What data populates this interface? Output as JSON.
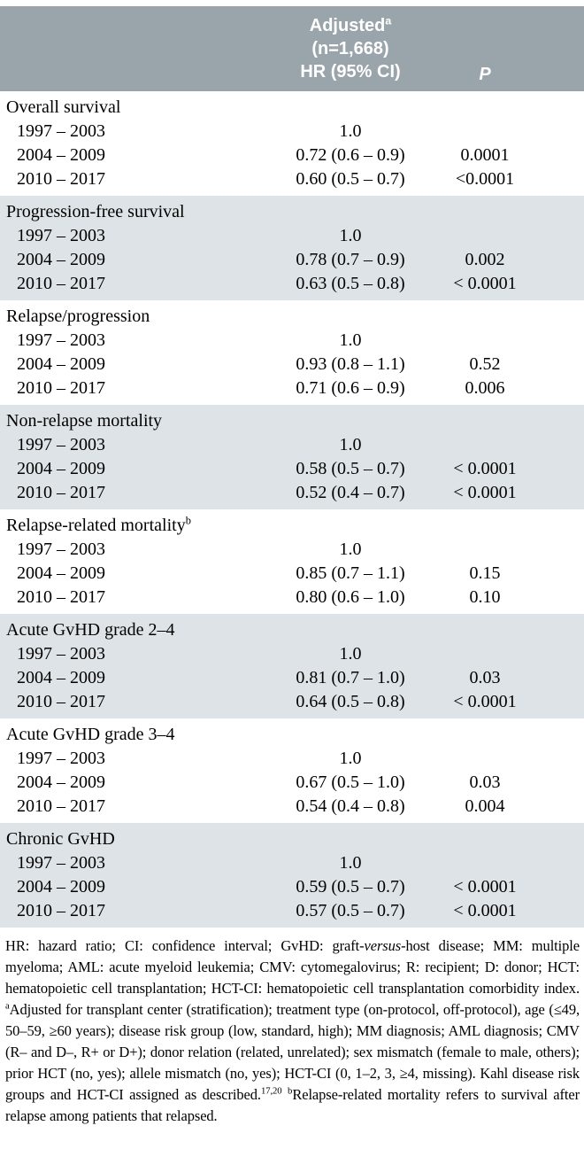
{
  "colors": {
    "header_bg": "#9aa5ab",
    "row_shade_bg": "#dde3e6",
    "header_text": "#ffffff",
    "body_text": "#000000"
  },
  "table": {
    "header": {
      "adjusted_label": "Adjusted",
      "adjusted_sup": "a",
      "n_label": "(n=1,668)",
      "hr_ci_label": "HR (95% CI)",
      "p_label": "P"
    },
    "sections": [
      {
        "title": "Overall survival",
        "shaded": false,
        "rows": [
          {
            "period": "1997 – 2003",
            "hr": "1.0",
            "p": ""
          },
          {
            "period": "2004 – 2009",
            "hr": "0.72 (0.6 – 0.9)",
            "p": "0.0001"
          },
          {
            "period": "2010 – 2017",
            "hr": "0.60 (0.5 – 0.7)",
            "p": "<0.0001"
          }
        ]
      },
      {
        "title": "Progression-free survival",
        "shaded": true,
        "rows": [
          {
            "period": "1997 – 2003",
            "hr": "1.0",
            "p": ""
          },
          {
            "period": "2004 – 2009",
            "hr": "0.78 (0.7 – 0.9)",
            "p": "0.002"
          },
          {
            "period": "2010 – 2017",
            "hr": "0.63 (0.5 – 0.8)",
            "p": "< 0.0001"
          }
        ]
      },
      {
        "title": "Relapse/progression",
        "shaded": false,
        "rows": [
          {
            "period": "1997 – 2003",
            "hr": "1.0",
            "p": ""
          },
          {
            "period": "2004 – 2009",
            "hr": "0.93 (0.8 – 1.1)",
            "p": "0.52"
          },
          {
            "period": "2010 – 2017",
            "hr": "0.71 (0.6 – 0.9)",
            "p": "0.006"
          }
        ]
      },
      {
        "title": "Non-relapse mortality",
        "shaded": true,
        "rows": [
          {
            "period": "1997 – 2003",
            "hr": "1.0",
            "p": ""
          },
          {
            "period": "2004 – 2009",
            "hr": "0.58 (0.5 – 0.7)",
            "p": "< 0.0001"
          },
          {
            "period": "2010 – 2017",
            "hr": "0.52 (0.4 – 0.7)",
            "p": "< 0.0001"
          }
        ]
      },
      {
        "title": "Relapse-related mortality",
        "sup": "b",
        "shaded": false,
        "rows": [
          {
            "period": "1997 – 2003",
            "hr": "1.0",
            "p": ""
          },
          {
            "period": "2004 – 2009",
            "hr": "0.85 (0.7 – 1.1)",
            "p": "0.15"
          },
          {
            "period": "2010 – 2017",
            "hr": "0.80 (0.6 – 1.0)",
            "p": "0.10"
          }
        ]
      },
      {
        "title": "Acute GvHD grade 2–4",
        "shaded": true,
        "rows": [
          {
            "period": "1997 – 2003",
            "hr": "1.0",
            "p": ""
          },
          {
            "period": "2004 – 2009",
            "hr": "0.81 (0.7 – 1.0)",
            "p": "0.03"
          },
          {
            "period": "2010 – 2017",
            "hr": "0.64 (0.5 – 0.8)",
            "p": "< 0.0001"
          }
        ]
      },
      {
        "title": "Acute GvHD grade 3–4",
        "shaded": false,
        "rows": [
          {
            "period": "1997 – 2003",
            "hr": "1.0",
            "p": ""
          },
          {
            "period": "2004 – 2009",
            "hr": "0.67 (0.5 – 1.0)",
            "p": "0.03"
          },
          {
            "period": "2010 – 2017",
            "hr": "0.54 (0.4 – 0.8)",
            "p": "0.004"
          }
        ]
      },
      {
        "title": "Chronic GvHD",
        "shaded": true,
        "rows": [
          {
            "period": "1997 – 2003",
            "hr": "1.0",
            "p": ""
          },
          {
            "period": "2004 – 2009",
            "hr": "0.59 (0.5 – 0.7)",
            "p": "< 0.0001"
          },
          {
            "period": "2010 – 2017",
            "hr": "0.57 (0.5 – 0.7)",
            "p": "< 0.0001"
          }
        ]
      }
    ]
  },
  "footnote": {
    "segments": [
      {
        "style": "normal",
        "text": "HR: hazard ratio; CI: confidence interval; GvHD: graft-"
      },
      {
        "style": "italic",
        "text": "versus"
      },
      {
        "style": "normal",
        "text": "-host disease; MM: multiple myeloma; AML: acute myeloid leukemia; CMV: cytomegalovirus; R: recipient; D: donor; HCT: hematopoietic cell transplantation; HCT-CI: hematopoietic cell transplantation comorbidity index. "
      },
      {
        "style": "sup",
        "text": "a"
      },
      {
        "style": "normal",
        "text": "Adjusted for transplant center (stratification); treatment type (on-protocol, off-protocol), age (≤49, 50–59, ≥60 years); disease risk group (low, standard, high); MM diagnosis; AML diagnosis; CMV (R– and D–, R+ or D+); donor relation (related, unrelated); sex mismatch (female to male, others); prior HCT (no, yes); allele mismatch (no, yes); HCT-CI (0, 1–2, 3, ≥4, missing). Kahl disease risk groups and HCT-CI assigned as described."
      },
      {
        "style": "sup",
        "text": "17,20"
      },
      {
        "style": "normal",
        "text": " "
      },
      {
        "style": "sup",
        "text": "b"
      },
      {
        "style": "normal",
        "text": "Relapse-related mortality refers to survival after relapse among patients that relapsed."
      }
    ]
  }
}
